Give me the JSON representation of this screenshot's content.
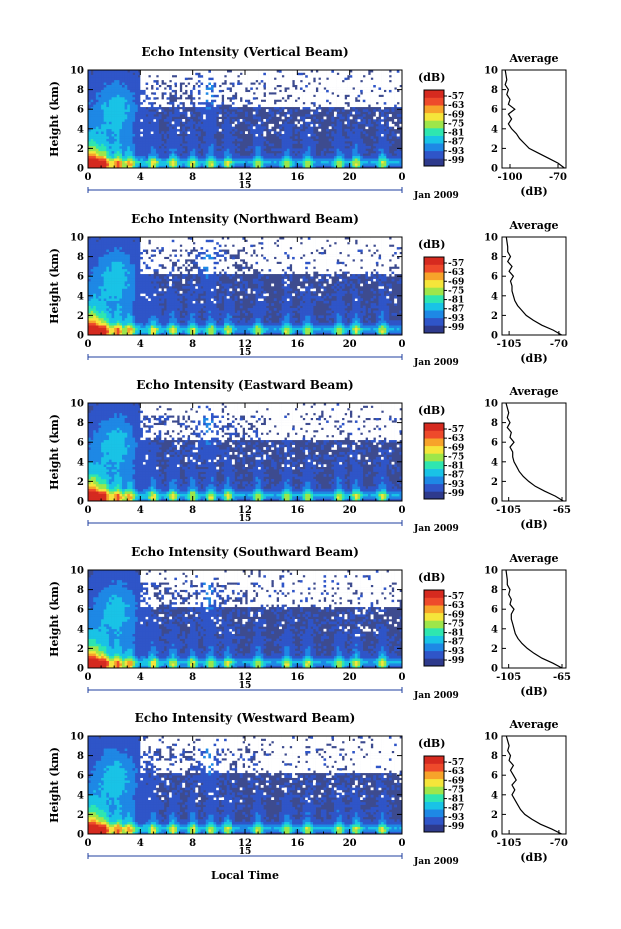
{
  "common": {
    "x_label": "Local Time",
    "date_label": "Jan 2009",
    "day_label": "15",
    "y_label": "Height (km)",
    "x_ticks": [
      "0",
      "4",
      "8",
      "12",
      "16",
      "20",
      "0"
    ],
    "y_ticks": [
      "0",
      "2",
      "4",
      "6",
      "8",
      "10"
    ],
    "colorbar_unit": "(dB)",
    "colorbar_ticks": [
      "-57",
      "-63",
      "-69",
      "-75",
      "-81",
      "-87",
      "-93",
      "-99"
    ],
    "average_title": "Average",
    "average_xlabel": "(dB)"
  },
  "colors": {
    "background_echo": "#3d4b8f",
    "colormap": [
      "#2e3a8c",
      "#2f55c8",
      "#1e88e5",
      "#19c3e6",
      "#2ee6b0",
      "#9ee64a",
      "#f5e53a",
      "#f7a32a",
      "#ee4a2b",
      "#d62a1f"
    ]
  },
  "chart_data": [
    {
      "type": "heatmap",
      "title": "Echo Intensity (Vertical Beam)",
      "xlabel": "",
      "ylabel": "Height (km)",
      "xlim": [
        0,
        24
      ],
      "ylim": [
        0,
        10
      ],
      "clim": [
        -99,
        -57
      ],
      "average": {
        "xticks": [
          "-100",
          "-70"
        ],
        "xlim": [
          -105,
          -65
        ],
        "profile": [
          {
            "h": 0,
            "db": -66
          },
          {
            "h": 0.5,
            "db": -70
          },
          {
            "h": 1,
            "db": -76
          },
          {
            "h": 1.5,
            "db": -82
          },
          {
            "h": 2,
            "db": -88
          },
          {
            "h": 2.5,
            "db": -91
          },
          {
            "h": 3,
            "db": -94
          },
          {
            "h": 3.5,
            "db": -96
          },
          {
            "h": 4,
            "db": -99
          },
          {
            "h": 4.5,
            "db": -101
          },
          {
            "h": 5,
            "db": -99
          },
          {
            "h": 5.5,
            "db": -101
          },
          {
            "h": 6,
            "db": -97
          },
          {
            "h": 6.5,
            "db": -101
          },
          {
            "h": 7,
            "db": -100
          },
          {
            "h": 7.5,
            "db": -102
          },
          {
            "h": 8,
            "db": -101
          },
          {
            "h": 8.5,
            "db": -103
          },
          {
            "h": 9,
            "db": -102
          },
          {
            "h": 10,
            "db": -103
          }
        ]
      }
    },
    {
      "type": "heatmap",
      "title": "Echo Intensity (Northward Beam)",
      "xlabel": "",
      "ylabel": "Height (km)",
      "xlim": [
        0,
        24
      ],
      "ylim": [
        0,
        10
      ],
      "clim": [
        -99,
        -57
      ],
      "average": {
        "xticks": [
          "-105",
          "-70"
        ],
        "xlim": [
          -110,
          -65
        ],
        "profile": [
          {
            "h": 0,
            "db": -68
          },
          {
            "h": 0.5,
            "db": -74
          },
          {
            "h": 1,
            "db": -82
          },
          {
            "h": 1.5,
            "db": -88
          },
          {
            "h": 2,
            "db": -93
          },
          {
            "h": 2.5,
            "db": -96
          },
          {
            "h": 3,
            "db": -99
          },
          {
            "h": 3.5,
            "db": -101
          },
          {
            "h": 4,
            "db": -102
          },
          {
            "h": 4.5,
            "db": -103
          },
          {
            "h": 5,
            "db": -103
          },
          {
            "h": 5.5,
            "db": -104
          },
          {
            "h": 6,
            "db": -102
          },
          {
            "h": 6.5,
            "db": -105
          },
          {
            "h": 7,
            "db": -103
          },
          {
            "h": 7.5,
            "db": -106
          },
          {
            "h": 8,
            "db": -104
          },
          {
            "h": 8.5,
            "db": -106
          },
          {
            "h": 9,
            "db": -106
          },
          {
            "h": 10,
            "db": -107
          }
        ]
      }
    },
    {
      "type": "heatmap",
      "title": "Echo Intensity (Eastward Beam)",
      "xlabel": "",
      "ylabel": "Height (km)",
      "xlim": [
        0,
        24
      ],
      "ylim": [
        0,
        10
      ],
      "clim": [
        -99,
        -57
      ],
      "average": {
        "xticks": [
          "-105",
          "-65"
        ],
        "xlim": [
          -110,
          -62
        ],
        "profile": [
          {
            "h": 0,
            "db": -64
          },
          {
            "h": 0.5,
            "db": -70
          },
          {
            "h": 1,
            "db": -78
          },
          {
            "h": 1.5,
            "db": -85
          },
          {
            "h": 2,
            "db": -90
          },
          {
            "h": 2.5,
            "db": -94
          },
          {
            "h": 3,
            "db": -97
          },
          {
            "h": 3.5,
            "db": -99
          },
          {
            "h": 4,
            "db": -101
          },
          {
            "h": 4.5,
            "db": -102
          },
          {
            "h": 5,
            "db": -102
          },
          {
            "h": 5.5,
            "db": -104
          },
          {
            "h": 6,
            "db": -101
          },
          {
            "h": 6.5,
            "db": -104
          },
          {
            "h": 7,
            "db": -103
          },
          {
            "h": 7.5,
            "db": -106
          },
          {
            "h": 8,
            "db": -104
          },
          {
            "h": 8.5,
            "db": -106
          },
          {
            "h": 9,
            "db": -105
          },
          {
            "h": 10,
            "db": -107
          }
        ]
      }
    },
    {
      "type": "heatmap",
      "title": "Echo Intensity (Southward Beam)",
      "xlabel": "",
      "ylabel": "Height (km)",
      "xlim": [
        0,
        24
      ],
      "ylim": [
        0,
        10
      ],
      "clim": [
        -99,
        -57
      ],
      "average": {
        "xticks": [
          "-105",
          "-65"
        ],
        "xlim": [
          -110,
          -62
        ],
        "profile": [
          {
            "h": 0,
            "db": -65
          },
          {
            "h": 0.5,
            "db": -72
          },
          {
            "h": 1,
            "db": -80
          },
          {
            "h": 1.5,
            "db": -86
          },
          {
            "h": 2,
            "db": -91
          },
          {
            "h": 2.5,
            "db": -95
          },
          {
            "h": 3,
            "db": -98
          },
          {
            "h": 3.5,
            "db": -100
          },
          {
            "h": 4,
            "db": -101
          },
          {
            "h": 4.5,
            "db": -102
          },
          {
            "h": 5,
            "db": -103
          },
          {
            "h": 5.5,
            "db": -103
          },
          {
            "h": 6,
            "db": -101
          },
          {
            "h": 6.5,
            "db": -104
          },
          {
            "h": 7,
            "db": -103
          },
          {
            "h": 7.5,
            "db": -105
          },
          {
            "h": 8,
            "db": -104
          },
          {
            "h": 8.5,
            "db": -106
          },
          {
            "h": 9,
            "db": -106
          },
          {
            "h": 10,
            "db": -107
          }
        ]
      }
    },
    {
      "type": "heatmap",
      "title": "Echo Intensity (Westward Beam)",
      "xlabel": "Local Time",
      "ylabel": "Height (km)",
      "xlim": [
        0,
        24
      ],
      "ylim": [
        0,
        10
      ],
      "clim": [
        -99,
        -57
      ],
      "average": {
        "xticks": [
          "-105",
          "-70"
        ],
        "xlim": [
          -110,
          -65
        ],
        "profile": [
          {
            "h": 0,
            "db": -68
          },
          {
            "h": 0.5,
            "db": -75
          },
          {
            "h": 1,
            "db": -83
          },
          {
            "h": 1.5,
            "db": -89
          },
          {
            "h": 2,
            "db": -94
          },
          {
            "h": 2.5,
            "db": -97
          },
          {
            "h": 3,
            "db": -99
          },
          {
            "h": 3.5,
            "db": -101
          },
          {
            "h": 4,
            "db": -103
          },
          {
            "h": 4.5,
            "db": -101
          },
          {
            "h": 5,
            "db": -103
          },
          {
            "h": 5.5,
            "db": -100
          },
          {
            "h": 6,
            "db": -102
          },
          {
            "h": 6.5,
            "db": -104
          },
          {
            "h": 7,
            "db": -102
          },
          {
            "h": 7.5,
            "db": -105
          },
          {
            "h": 8,
            "db": -104
          },
          {
            "h": 8.5,
            "db": -106
          },
          {
            "h": 9,
            "db": -105
          },
          {
            "h": 10,
            "db": -107
          }
        ]
      }
    }
  ]
}
